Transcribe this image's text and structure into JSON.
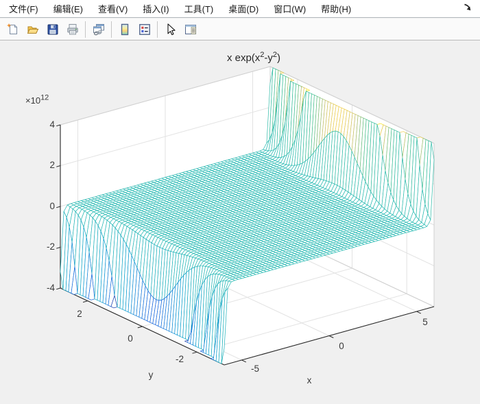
{
  "menu_bar": {
    "items": [
      {
        "label": "文件(F)"
      },
      {
        "label": "编辑(E)"
      },
      {
        "label": "查看(V)"
      },
      {
        "label": "插入(I)"
      },
      {
        "label": "工具(T)"
      },
      {
        "label": "桌面(D)"
      },
      {
        "label": "窗口(W)"
      },
      {
        "label": "帮助(H)"
      }
    ]
  },
  "window": {
    "dock_arrow_icon": "dock-figure-arrow"
  },
  "toolbar": {
    "buttons": [
      {
        "icon": "new-figure-icon",
        "name": "新建图窗"
      },
      {
        "icon": "open-file-icon",
        "name": "打开文件"
      },
      {
        "icon": "save-figure-icon",
        "name": "保存图窗"
      },
      {
        "icon": "print-figure-icon",
        "name": "打印图窗"
      },
      {
        "icon": "link-plot-icon",
        "name": "链接绘图"
      },
      {
        "icon": "insert-colorbar-icon",
        "name": "插入颜色栏"
      },
      {
        "icon": "insert-legend-icon",
        "name": "插入图例"
      },
      {
        "icon": "edit-plot-icon",
        "name": "编辑绘图"
      },
      {
        "icon": "show-plot-tools-icon",
        "name": "显示绘图工具"
      }
    ]
  },
  "colors": {
    "figure_bg": "#f0f0f0",
    "plot_bg": "#ffffff",
    "axis": "#262626",
    "grid": "#e2e2e2",
    "box_edge": "#cfcfcf",
    "label": "#3a3a3a",
    "mesh_face": "#ffffff",
    "mesh_mid": "#26b9b2"
  },
  "chart_data": {
    "type": "mesh3d",
    "title": "x exp(x^2-y^2)",
    "title_parts": [
      {
        "t": "x exp(x",
        "sup": false
      },
      {
        "t": "2",
        "sup": true
      },
      {
        "t": "-y",
        "sup": false
      },
      {
        "t": "2",
        "sup": true
      },
      {
        "t": ")",
        "sup": false
      }
    ],
    "z_expression": "x * Math.exp(x*x - y*y)",
    "xlabel": "x",
    "ylabel": "y",
    "x_range": [
      -6,
      6
    ],
    "y_range": [
      -3,
      3
    ],
    "z_range": [
      -4000000000000.0,
      4000000000000.0
    ],
    "x_ticks": [
      -5,
      0,
      5
    ],
    "y_ticks": [
      -2,
      0,
      2
    ],
    "z_ticks": [
      -4,
      -2,
      0,
      2,
      4
    ],
    "x_tick_labels": [
      "-5",
      "0",
      "5"
    ],
    "y_tick_labels": [
      "2",
      "0",
      "-2"
    ],
    "z_tick_labels": [
      "4",
      "2",
      "0",
      "-2",
      "-4"
    ],
    "z_exponent_parts": {
      "base": "×10",
      "exp": "12"
    },
    "grid": {
      "x_step": 0.2,
      "y_step": 0.1
    },
    "view": {
      "azimuth": -37.5,
      "elevation": 30
    },
    "grid_on": true,
    "colormap": "parula",
    "colormap_stops": [
      [
        0.0,
        "#352a87"
      ],
      [
        0.125,
        "#0f5cdd"
      ],
      [
        0.25,
        "#127dd8"
      ],
      [
        0.375,
        "#079ccf"
      ],
      [
        0.5,
        "#26b9b2"
      ],
      [
        0.625,
        "#3ebe8c"
      ],
      [
        0.75,
        "#c2bd63"
      ],
      [
        0.875,
        "#f6cf40"
      ],
      [
        1.0,
        "#f9fb0e"
      ]
    ]
  }
}
